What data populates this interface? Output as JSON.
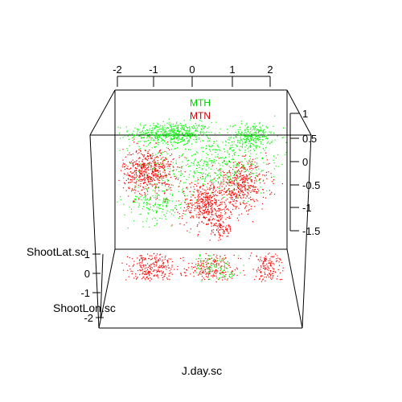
{
  "chart_data": {
    "type": "scatter",
    "title": "",
    "xlabel": "J.day.sc",
    "ylabel": "ShootLat.sc",
    "zlabel": "ShootLon.sc",
    "x_ticks": [
      "-2",
      "-1",
      "0",
      "1",
      "2"
    ],
    "z_ticks": [
      "1",
      "0.5",
      "0",
      "-0.5",
      "-1",
      "-1.5"
    ],
    "y_ticks": [
      "1",
      "0",
      "-1",
      "-2"
    ],
    "grid": false,
    "legend_position": "top-center",
    "series": [
      {
        "name": "MTH",
        "color": "#00ff00",
        "clusters": [
          {
            "x": -0.8,
            "y": 0.72,
            "spread_x": 0.9,
            "spread_y": 0.22,
            "count": 520
          },
          {
            "x": 1.3,
            "y": 0.65,
            "spread_x": 0.45,
            "spread_y": 0.25,
            "count": 260
          },
          {
            "x": 0.3,
            "y": 0.0,
            "spread_x": 1.6,
            "spread_y": 0.55,
            "count": 520
          },
          {
            "x": -1.2,
            "y": -0.9,
            "spread_x": 0.7,
            "spread_y": 0.4,
            "count": 200
          }
        ]
      },
      {
        "name": "MTN",
        "color": "#ff0000",
        "clusters": [
          {
            "x": -1.4,
            "y": -0.15,
            "spread_x": 0.55,
            "spread_y": 0.45,
            "count": 540
          },
          {
            "x": 0.1,
            "y": -0.95,
            "spread_x": 0.55,
            "spread_y": 0.45,
            "count": 420
          },
          {
            "x": 1.0,
            "y": -0.5,
            "spread_x": 0.6,
            "spread_y": 0.45,
            "count": 420
          },
          {
            "x": 0.5,
            "y": -1.5,
            "spread_x": 0.25,
            "spread_y": 0.25,
            "count": 90
          }
        ]
      }
    ],
    "floor_projection": {
      "clusters": [
        {
          "color": "#ff0000",
          "x": -1.3,
          "spread_x": 0.5,
          "count": 240
        },
        {
          "color": "#ff0000",
          "x": 0.3,
          "spread_x": 0.55,
          "count": 200
        },
        {
          "color": "#ff0000",
          "x": 1.8,
          "spread_x": 0.35,
          "count": 140
        },
        {
          "color": "#00ff00",
          "x": 0.4,
          "spread_x": 0.5,
          "count": 90
        }
      ]
    }
  }
}
